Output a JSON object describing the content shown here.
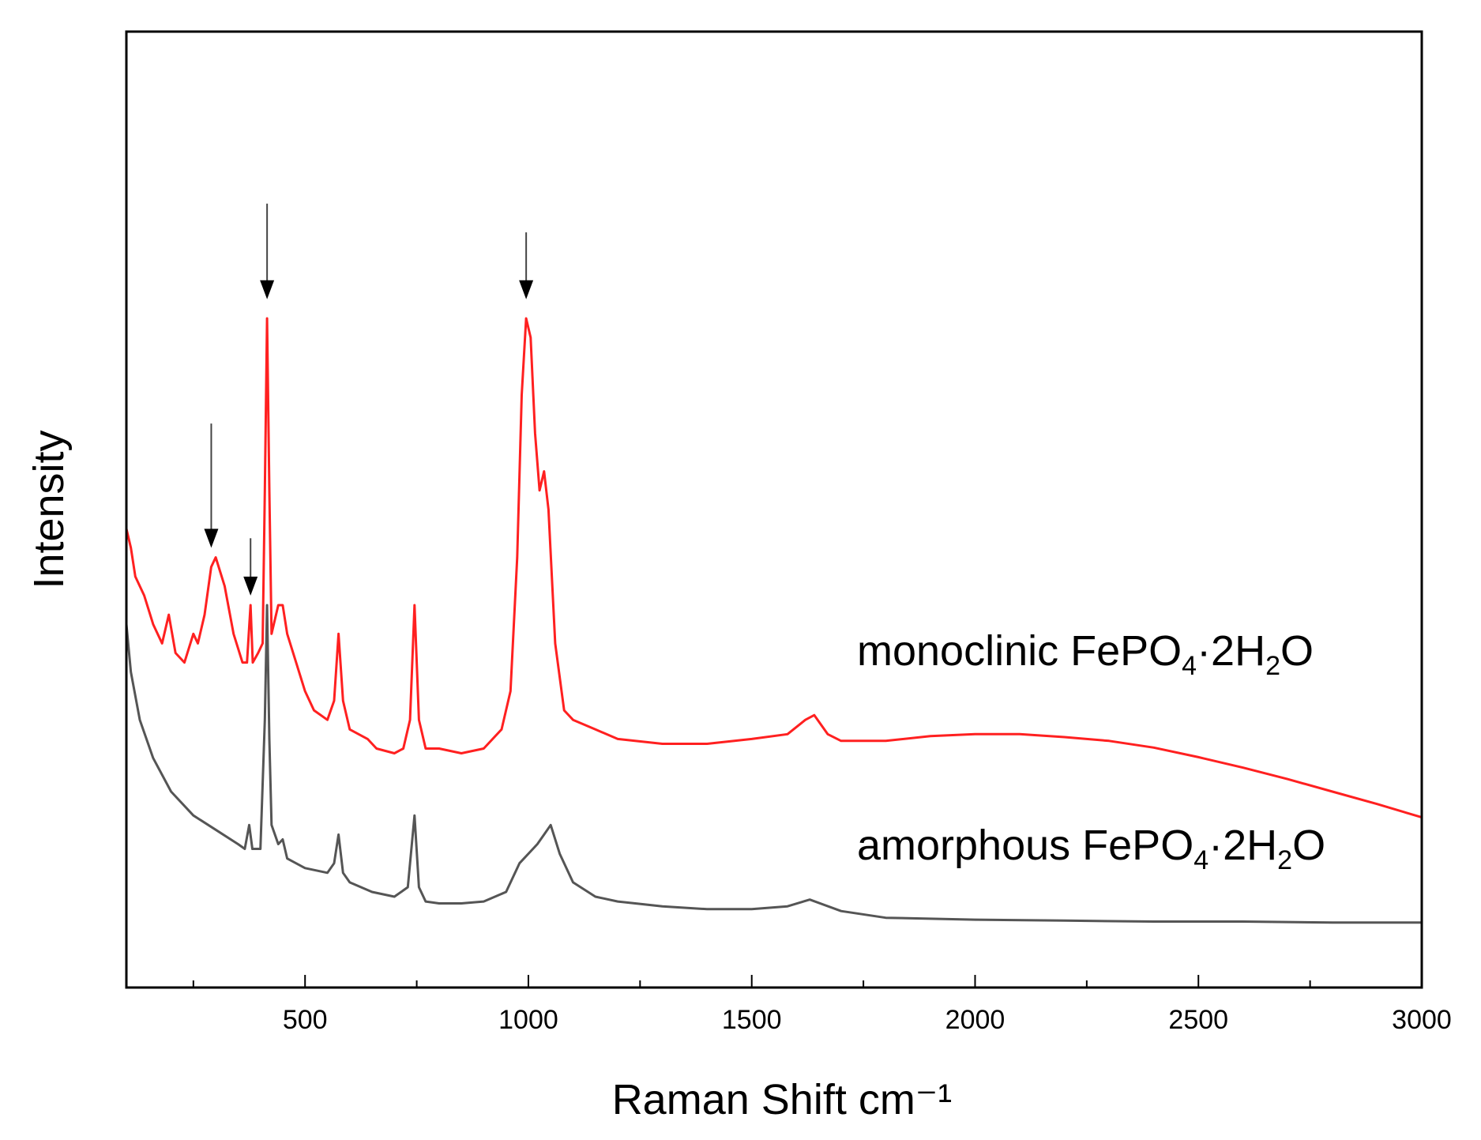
{
  "chart_data": {
    "type": "line",
    "title": "",
    "xlabel": "Raman Shift cm⁻¹",
    "ylabel": "Intensity",
    "xlim": [
      100,
      3000
    ],
    "ylim": [
      0,
      100
    ],
    "x_ticks": [
      500,
      1000,
      1500,
      2000,
      2500,
      3000
    ],
    "x_tick_labels": [
      "500",
      "1000",
      "1500",
      "2000",
      "2500",
      "3000"
    ],
    "y_ticks_shown": false,
    "grid": false,
    "series": [
      {
        "name": "monoclinic FePO4·2H2O",
        "label_parts": [
          "monoclinic  FePO",
          "4",
          "·2H",
          "2",
          "O"
        ],
        "color": "#ff2020",
        "points": [
          [
            100,
            48
          ],
          [
            110,
            46
          ],
          [
            120,
            43
          ],
          [
            140,
            41
          ],
          [
            160,
            38
          ],
          [
            180,
            36
          ],
          [
            195,
            39
          ],
          [
            210,
            35
          ],
          [
            230,
            34
          ],
          [
            250,
            37
          ],
          [
            260,
            36
          ],
          [
            275,
            39
          ],
          [
            290,
            44
          ],
          [
            300,
            45
          ],
          [
            320,
            42
          ],
          [
            340,
            37
          ],
          [
            360,
            34
          ],
          [
            370,
            34
          ],
          [
            378,
            40
          ],
          [
            383,
            34
          ],
          [
            395,
            35
          ],
          [
            405,
            36
          ],
          [
            410,
            52
          ],
          [
            415,
            70
          ],
          [
            420,
            52
          ],
          [
            425,
            37
          ],
          [
            440,
            40
          ],
          [
            450,
            40
          ],
          [
            460,
            37
          ],
          [
            480,
            34
          ],
          [
            500,
            31
          ],
          [
            520,
            29
          ],
          [
            550,
            28
          ],
          [
            565,
            30
          ],
          [
            575,
            37
          ],
          [
            585,
            30
          ],
          [
            600,
            27
          ],
          [
            640,
            26
          ],
          [
            660,
            25
          ],
          [
            700,
            24.5
          ],
          [
            720,
            25
          ],
          [
            735,
            28
          ],
          [
            745,
            40
          ],
          [
            755,
            28
          ],
          [
            770,
            25
          ],
          [
            800,
            25
          ],
          [
            850,
            24.5
          ],
          [
            900,
            25
          ],
          [
            940,
            27
          ],
          [
            960,
            31
          ],
          [
            975,
            45
          ],
          [
            985,
            62
          ],
          [
            995,
            70
          ],
          [
            1005,
            68
          ],
          [
            1015,
            58
          ],
          [
            1025,
            52
          ],
          [
            1035,
            54
          ],
          [
            1045,
            50
          ],
          [
            1060,
            36
          ],
          [
            1080,
            29
          ],
          [
            1100,
            28
          ],
          [
            1150,
            27
          ],
          [
            1200,
            26
          ],
          [
            1300,
            25.5
          ],
          [
            1400,
            25.5
          ],
          [
            1500,
            26
          ],
          [
            1580,
            26.5
          ],
          [
            1620,
            28
          ],
          [
            1640,
            28.5
          ],
          [
            1670,
            26.5
          ],
          [
            1700,
            25.8
          ],
          [
            1800,
            25.8
          ],
          [
            1900,
            26.3
          ],
          [
            2000,
            26.5
          ],
          [
            2100,
            26.5
          ],
          [
            2200,
            26.2
          ],
          [
            2300,
            25.8
          ],
          [
            2400,
            25.1
          ],
          [
            2500,
            24.1
          ],
          [
            2600,
            23
          ],
          [
            2700,
            21.8
          ],
          [
            2800,
            20.5
          ],
          [
            2900,
            19.2
          ],
          [
            3000,
            17.8
          ]
        ]
      },
      {
        "name": "amorphous FePO4·2H2O",
        "label_parts": [
          "amorphous FePO",
          "4",
          "·2H",
          "2",
          "O"
        ],
        "color": "#555555",
        "points": [
          [
            100,
            38
          ],
          [
            110,
            33
          ],
          [
            130,
            28
          ],
          [
            160,
            24
          ],
          [
            200,
            20.5
          ],
          [
            250,
            18
          ],
          [
            300,
            16.5
          ],
          [
            350,
            15
          ],
          [
            365,
            14.5
          ],
          [
            375,
            17
          ],
          [
            382,
            14.5
          ],
          [
            400,
            14.5
          ],
          [
            410,
            28
          ],
          [
            415,
            40
          ],
          [
            420,
            26
          ],
          [
            425,
            17
          ],
          [
            440,
            15
          ],
          [
            450,
            15.5
          ],
          [
            460,
            13.5
          ],
          [
            500,
            12.5
          ],
          [
            550,
            12
          ],
          [
            565,
            13
          ],
          [
            575,
            16
          ],
          [
            585,
            12
          ],
          [
            600,
            11
          ],
          [
            650,
            10
          ],
          [
            700,
            9.5
          ],
          [
            730,
            10.5
          ],
          [
            745,
            18
          ],
          [
            755,
            10.5
          ],
          [
            770,
            9
          ],
          [
            800,
            8.8
          ],
          [
            850,
            8.8
          ],
          [
            900,
            9
          ],
          [
            950,
            10
          ],
          [
            980,
            13
          ],
          [
            1000,
            14
          ],
          [
            1020,
            15
          ],
          [
            1035,
            16
          ],
          [
            1050,
            17
          ],
          [
            1070,
            14
          ],
          [
            1100,
            11
          ],
          [
            1150,
            9.5
          ],
          [
            1200,
            9
          ],
          [
            1300,
            8.5
          ],
          [
            1400,
            8.2
          ],
          [
            1500,
            8.2
          ],
          [
            1580,
            8.5
          ],
          [
            1630,
            9.2
          ],
          [
            1700,
            8
          ],
          [
            1800,
            7.3
          ],
          [
            2000,
            7.1
          ],
          [
            2200,
            7
          ],
          [
            2400,
            6.9
          ],
          [
            2600,
            6.9
          ],
          [
            2800,
            6.8
          ],
          [
            3000,
            6.8
          ]
        ]
      }
    ],
    "annotations": [
      {
        "type": "arrow",
        "x": 290,
        "y_from": 59,
        "y_to": 46
      },
      {
        "type": "arrow",
        "x": 378,
        "y_from": 47,
        "y_to": 41
      },
      {
        "type": "arrow",
        "x": 415,
        "y_from": 82,
        "y_to": 72
      },
      {
        "type": "arrow",
        "x": 995,
        "y_from": 79,
        "y_to": 72
      }
    ]
  }
}
